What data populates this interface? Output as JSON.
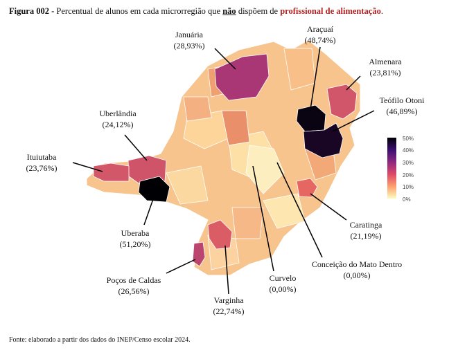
{
  "title": {
    "figure": "Figura 002 -",
    "text1": " Percentual de alunos em cada microrregião que ",
    "emph": "não",
    "text2": " dispõem de ",
    "highlight": "profissional de alimentação",
    "end": "."
  },
  "source": "Fonte: elaborado a partir dos dados do INEP/Censo escolar 2024.",
  "legend": {
    "ticks": [
      "50%",
      "40%",
      "30%",
      "20%",
      "10%",
      "0%"
    ],
    "min": 0,
    "max": 50
  },
  "colors": {
    "highlight_text": "#b22222",
    "base_fill": "#f6c98a"
  },
  "regions": [
    {
      "name": "Januária",
      "label": "(28,93%)",
      "value": 28.93
    },
    {
      "name": "Araçuaí",
      "label": "(48,74%)",
      "value": 48.74
    },
    {
      "name": "Almenara",
      "label": "(23,81%)",
      "value": 23.81
    },
    {
      "name": "Teófilo Otoni",
      "label": "(46,89%)",
      "value": 46.89
    },
    {
      "name": "Uberlândia",
      "label": "(24,12%)",
      "value": 24.12
    },
    {
      "name": "Ituiutaba",
      "label": "(23,76%)",
      "value": 23.76
    },
    {
      "name": "Uberaba",
      "label": "(51,20%)",
      "value": 51.2
    },
    {
      "name": "Caratinga",
      "label": "(21,19%)",
      "value": 21.19
    },
    {
      "name": "Conceição do Mato Dentro",
      "label": "(0,00%)",
      "value": 0.0
    },
    {
      "name": "Curvelo",
      "label": "(0,00%)",
      "value": 0.0
    },
    {
      "name": "Poços de Caldas",
      "label": "(26,56%)",
      "value": 26.56
    },
    {
      "name": "Varginha",
      "label": "(22,74%)",
      "value": 22.74
    }
  ]
}
